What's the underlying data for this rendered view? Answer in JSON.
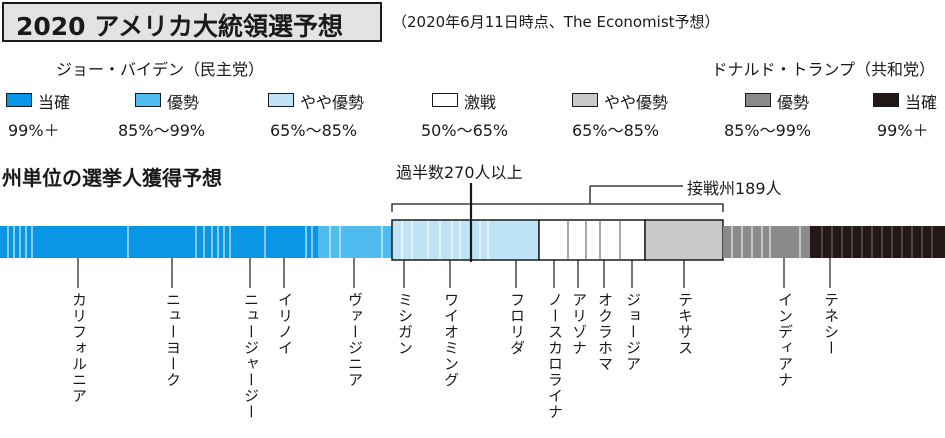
{
  "title": "2020 アメリカ大統領選予想",
  "subtitle": "（2020年6月11日時点、The Economist予想）",
  "candidates": {
    "left": "ジョー・バイデン（民主党）",
    "right": "ドナルド・トランプ（共和党）"
  },
  "legend": [
    {
      "label": "当確",
      "range": "99%＋",
      "color": "#0a96e6"
    },
    {
      "label": "優勢",
      "range": "85%〜99%",
      "color": "#4fbcf0"
    },
    {
      "label": "やや優勢",
      "range": "65%〜85%",
      "color": "#bfe4f6"
    },
    {
      "label": "激戦",
      "range": "50%〜65%",
      "color": "#ffffff"
    },
    {
      "label": "やや優勢",
      "range": "65%〜85%",
      "color": "#c8c8c8"
    },
    {
      "label": "優勢",
      "range": "85%〜99%",
      "color": "#8a8a8a"
    },
    {
      "label": "当確",
      "range": "99%＋",
      "color": "#231815"
    }
  ],
  "section_title": "州単位の選挙人獲得予想",
  "majority_label": "過半数270人以上",
  "battleground_label": "接戦州189人",
  "states": [
    "カリフォルニア",
    "ニューヨーク",
    "ニュージャージー",
    "イリノイ",
    "ヴァージニア",
    "ミシガン",
    "ワイオミング",
    "フロリダ",
    "ノースカロライナ",
    "アリゾナ",
    "オクラホマ",
    "ジョージア",
    "テキサス",
    "インディアナ",
    "テネシー"
  ]
}
